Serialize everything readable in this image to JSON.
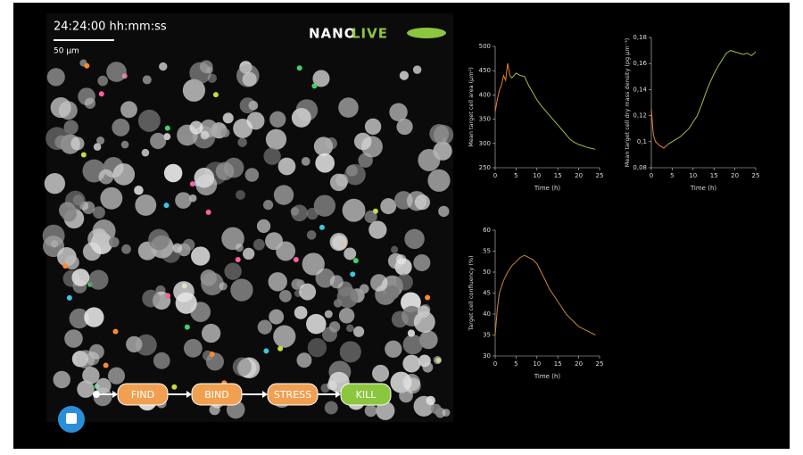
{
  "overlay": {
    "timestamp": "24:24:00 hh:mm:ss",
    "scale": "50 µm",
    "logo": {
      "left": "NANO",
      "right": "LIVE"
    },
    "steps": [
      "FIND",
      "BIND",
      "STRESS",
      "KILL"
    ]
  },
  "chart_data": [
    {
      "type": "line",
      "ylabel": "Mean target cell area (µm²)",
      "xlabel": "Time (h)",
      "xlim": [
        0,
        25
      ],
      "xticks": [
        0,
        5,
        10,
        15,
        20,
        25
      ],
      "ylim": [
        250,
        500
      ],
      "yticks": [
        250,
        300,
        350,
        400,
        450,
        500
      ],
      "series": [
        {
          "color": "#e8832a",
          "x": [
            0,
            0.5,
            1,
            1.5,
            2,
            2.5,
            3,
            3.5
          ],
          "values": [
            365,
            390,
            410,
            420,
            440,
            430,
            465,
            440
          ]
        },
        {
          "color": "#9cc23c",
          "x": [
            3.5,
            4,
            5,
            6,
            7,
            8,
            9,
            10,
            11,
            12,
            13,
            14,
            15,
            16,
            17,
            18,
            19,
            20,
            21,
            22,
            23,
            24
          ],
          "values": [
            440,
            435,
            445,
            440,
            438,
            420,
            405,
            390,
            378,
            368,
            358,
            348,
            338,
            328,
            318,
            308,
            302,
            298,
            295,
            292,
            290,
            288
          ]
        }
      ]
    },
    {
      "type": "line",
      "ylabel": "Mean target cell dry mass density (pg µm⁻³)",
      "xlabel": "Time (h)",
      "xlim": [
        0,
        25
      ],
      "xticks": [
        0,
        5,
        10,
        15,
        20,
        25
      ],
      "ylim": [
        0.08,
        0.18
      ],
      "yticks": [
        {
          "value": 0.08,
          "label": "0,08"
        },
        {
          "value": 0.1,
          "label": "0,1"
        },
        {
          "value": 0.12,
          "label": "0,12"
        },
        {
          "value": 0.14,
          "label": "0,14"
        },
        {
          "value": 0.16,
          "label": "0,16"
        },
        {
          "value": 0.18,
          "label": "0,18"
        }
      ],
      "series": [
        {
          "color": "#e8832a",
          "x": [
            0,
            0.5,
            1,
            2,
            3,
            4
          ],
          "values": [
            0.125,
            0.105,
            0.1,
            0.097,
            0.095,
            0.098
          ]
        },
        {
          "color": "#9cc23c",
          "x": [
            4,
            5,
            6,
            7,
            8,
            9,
            10,
            11,
            12,
            13,
            14,
            15,
            16,
            17,
            18,
            19,
            20,
            21,
            22,
            23,
            24,
            25
          ],
          "values": [
            0.098,
            0.1,
            0.102,
            0.104,
            0.107,
            0.11,
            0.115,
            0.12,
            0.128,
            0.137,
            0.145,
            0.152,
            0.158,
            0.163,
            0.168,
            0.17,
            0.169,
            0.168,
            0.167,
            0.168,
            0.166,
            0.169
          ]
        }
      ]
    },
    {
      "type": "line",
      "ylabel": "Target cell confluency (%)",
      "xlabel": "Time (h)",
      "xlim": [
        0,
        25
      ],
      "xticks": [
        0,
        5,
        10,
        15,
        20,
        25
      ],
      "ylim": [
        30,
        60
      ],
      "yticks": [
        30,
        35,
        40,
        45,
        50,
        55,
        60
      ],
      "series": [
        {
          "color": "#c98a2e",
          "x": [
            0,
            0.5,
            1,
            2,
            3,
            4,
            5,
            6,
            7,
            8,
            9,
            10,
            11,
            12,
            13,
            14,
            15,
            16,
            17,
            18,
            19,
            20,
            21,
            22,
            23,
            24
          ],
          "values": [
            35,
            41,
            45,
            48,
            50,
            51.5,
            52.5,
            53.5,
            54,
            53.5,
            53,
            52,
            50,
            48,
            46,
            44.5,
            43,
            41.5,
            40,
            39,
            38,
            37,
            36.5,
            36,
            35.5,
            35
          ]
        }
      ]
    }
  ]
}
